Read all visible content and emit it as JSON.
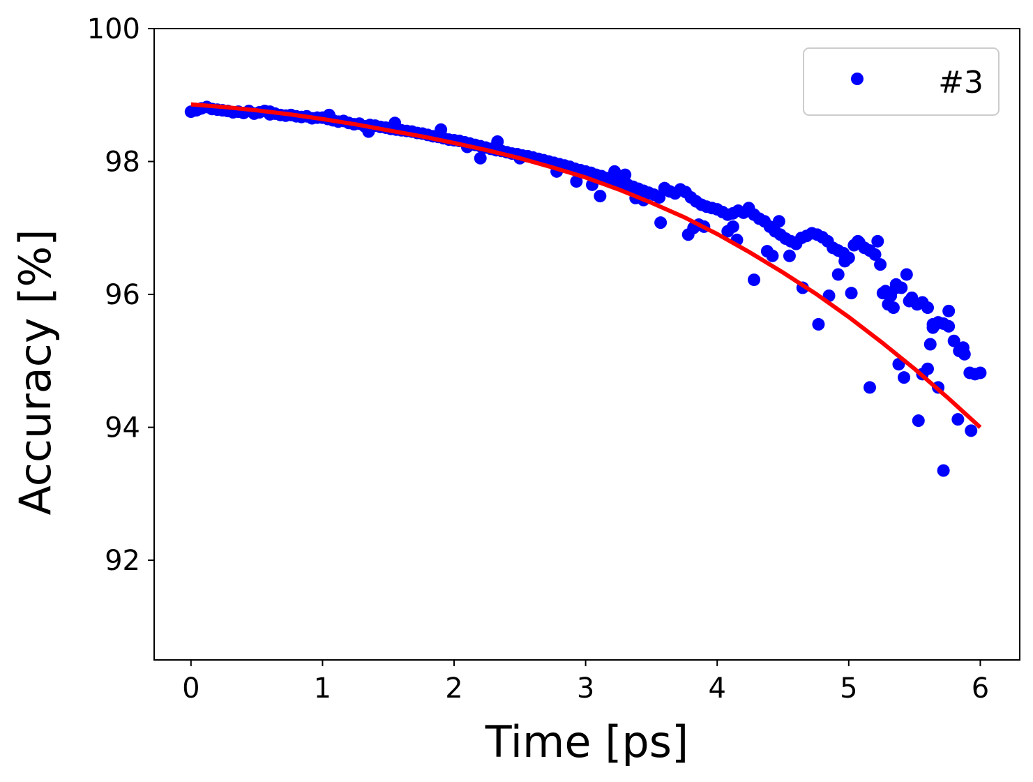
{
  "chart_data": {
    "type": "scatter",
    "title": "",
    "xlabel": "Time [ps]",
    "ylabel": "Accuracy [%]",
    "xlim": [
      -0.28,
      6.3
    ],
    "ylim": [
      90.5,
      100
    ],
    "xticks": [
      0,
      1,
      2,
      3,
      4,
      5,
      6
    ],
    "yticks": [
      92,
      94,
      96,
      98,
      100
    ],
    "xtick_labels": [
      "0",
      "1",
      "2",
      "3",
      "4",
      "5",
      "6"
    ],
    "ytick_labels": [
      "92",
      "94",
      "96",
      "98",
      "100"
    ],
    "grid": false,
    "legend": {
      "placement": "top-right",
      "entries": [
        "#3"
      ]
    },
    "series": [
      {
        "name": "#3",
        "kind": "markers",
        "color": "#0000ff",
        "x": [
          0.0,
          0.04,
          0.08,
          0.12,
          0.16,
          0.2,
          0.24,
          0.28,
          0.32,
          0.36,
          0.4,
          0.44,
          0.48,
          0.52,
          0.56,
          0.6,
          0.64,
          0.68,
          0.72,
          0.76,
          0.8,
          0.84,
          0.88,
          0.92,
          0.96,
          1.0,
          1.04,
          1.08,
          1.12,
          1.16,
          1.2,
          1.24,
          1.28,
          1.32,
          1.36,
          1.4,
          1.44,
          1.48,
          1.52,
          1.56,
          1.6,
          1.64,
          1.68,
          1.72,
          1.76,
          1.8,
          1.84,
          1.88,
          1.92,
          1.96,
          2.0,
          2.04,
          2.08,
          2.12,
          2.16,
          2.2,
          2.24,
          2.28,
          2.32,
          2.36,
          2.4,
          2.44,
          2.48,
          2.52,
          2.56,
          2.6,
          2.64,
          2.68,
          2.72,
          2.76,
          2.8,
          2.84,
          2.88,
          2.92,
          2.96,
          3.0,
          3.04,
          3.08,
          3.12,
          3.16,
          3.2,
          3.24,
          3.28,
          3.32,
          3.36,
          3.4,
          3.44,
          3.48,
          3.52,
          3.56,
          3.6,
          3.64,
          3.68,
          3.72,
          3.76,
          3.8,
          3.84,
          3.88,
          3.92,
          3.96,
          4.0,
          4.04,
          4.08,
          4.12,
          4.16,
          4.2,
          4.24,
          4.28,
          4.32,
          4.36,
          4.4,
          4.44,
          4.48,
          4.52,
          4.56,
          4.6,
          4.64,
          4.68,
          4.72,
          4.76,
          4.8,
          4.84,
          4.88,
          4.92,
          4.96,
          5.0,
          5.04,
          5.08,
          5.12,
          5.16,
          5.2,
          5.24,
          5.28,
          5.32,
          5.36,
          5.4,
          5.44,
          5.48,
          5.52,
          5.56,
          5.6,
          5.64,
          5.68,
          5.72,
          5.76,
          5.8,
          5.84,
          5.88,
          5.92,
          5.96,
          6.0,
          0.05,
          0.6,
          1.05,
          1.35,
          1.55,
          1.9,
          2.1,
          2.2,
          2.33,
          2.5,
          2.78,
          2.93,
          3.05,
          3.11,
          3.22,
          3.3,
          3.38,
          3.44,
          3.57,
          3.78,
          3.82,
          3.86,
          3.9,
          4.08,
          4.12,
          4.15,
          4.28,
          4.38,
          4.42,
          4.47,
          4.55,
          4.65,
          4.77,
          4.85,
          4.92,
          4.97,
          5.02,
          5.07,
          5.16,
          5.22,
          5.26,
          5.3,
          5.34,
          5.38,
          5.42,
          5.46,
          5.53,
          5.56,
          5.6,
          5.64,
          5.68,
          5.72,
          5.76,
          5.83,
          5.87,
          5.93,
          5.36,
          5.3,
          5.62,
          5.66
        ],
        "y": [
          98.75,
          98.77,
          98.8,
          98.82,
          98.79,
          98.78,
          98.77,
          98.76,
          98.74,
          98.75,
          98.73,
          98.76,
          98.72,
          98.74,
          98.76,
          98.71,
          98.72,
          98.7,
          98.69,
          98.7,
          98.68,
          98.67,
          98.68,
          98.65,
          98.66,
          98.66,
          98.64,
          98.62,
          98.6,
          98.61,
          98.58,
          98.56,
          98.57,
          98.53,
          98.55,
          98.54,
          98.52,
          98.51,
          98.49,
          98.48,
          98.47,
          98.46,
          98.45,
          98.43,
          98.42,
          98.4,
          98.38,
          98.37,
          98.35,
          98.33,
          98.32,
          98.31,
          98.29,
          98.27,
          98.25,
          98.23,
          98.21,
          98.19,
          98.17,
          98.16,
          98.14,
          98.12,
          98.11,
          98.09,
          98.08,
          98.06,
          98.04,
          98.02,
          98.0,
          97.98,
          97.96,
          97.94,
          97.92,
          97.89,
          97.87,
          97.85,
          97.83,
          97.8,
          97.78,
          97.75,
          97.73,
          97.7,
          97.67,
          97.65,
          97.62,
          97.59,
          97.56,
          97.53,
          97.5,
          97.46,
          97.6,
          97.55,
          97.52,
          97.58,
          97.54,
          97.46,
          97.4,
          97.35,
          97.32,
          97.3,
          97.28,
          97.24,
          97.2,
          97.22,
          97.26,
          97.23,
          97.3,
          97.2,
          97.14,
          97.1,
          97.02,
          96.95,
          96.9,
          96.84,
          96.8,
          96.76,
          96.85,
          96.88,
          96.92,
          96.9,
          96.86,
          96.8,
          96.7,
          96.66,
          96.62,
          96.55,
          96.74,
          96.78,
          96.7,
          96.66,
          96.6,
          96.45,
          96.05,
          95.98,
          96.15,
          96.1,
          96.3,
          95.95,
          95.85,
          95.88,
          95.8,
          95.55,
          95.58,
          95.56,
          95.52,
          95.3,
          95.15,
          95.1,
          94.82,
          94.8,
          94.82,
          98.78,
          98.75,
          98.7,
          98.45,
          98.58,
          98.48,
          98.22,
          98.05,
          98.3,
          98.05,
          97.85,
          97.7,
          97.65,
          97.48,
          97.85,
          97.8,
          97.45,
          97.42,
          97.08,
          96.9,
          97.0,
          97.05,
          97.02,
          96.95,
          97.02,
          96.82,
          96.22,
          96.65,
          96.58,
          97.1,
          96.58,
          96.1,
          95.55,
          95.98,
          96.3,
          96.5,
          96.02,
          96.8,
          94.6,
          96.8,
          96.02,
          96.0,
          95.8,
          94.95,
          94.75,
          95.9,
          94.1,
          94.8,
          94.88,
          95.5,
          94.6,
          93.35,
          95.75,
          94.12,
          95.2,
          93.95,
          96.1,
          95.85,
          95.25,
          95.55
        ],
        "marker_note": "filled circles"
      },
      {
        "name": "",
        "kind": "line",
        "color": "#ff0000",
        "x": [
          0.0,
          0.25,
          0.5,
          0.75,
          1.0,
          1.25,
          1.5,
          1.75,
          2.0,
          2.25,
          2.5,
          2.75,
          3.0,
          3.25,
          3.5,
          3.75,
          4.0,
          4.25,
          4.5,
          4.75,
          5.0,
          5.25,
          5.5,
          5.75,
          6.0
        ],
        "y": [
          98.86,
          98.82,
          98.77,
          98.71,
          98.64,
          98.56,
          98.47,
          98.38,
          98.28,
          98.17,
          98.05,
          97.91,
          97.76,
          97.58,
          97.38,
          97.16,
          96.91,
          96.63,
          96.33,
          96.01,
          95.66,
          95.28,
          94.88,
          94.45,
          94.0
        ]
      }
    ]
  }
}
